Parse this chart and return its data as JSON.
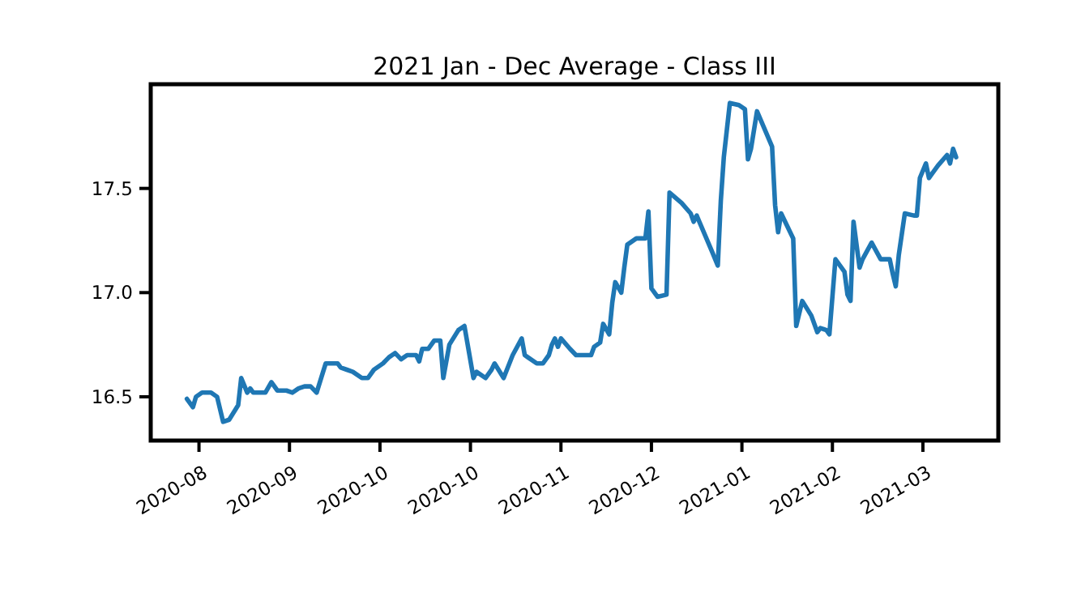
{
  "chart_data": {
    "type": "line",
    "title": "2021 Jan - Dec Average - Class III",
    "x": [
      "2020-07-29",
      "2020-07-31",
      "2020-08-01",
      "2020-08-03",
      "2020-08-06",
      "2020-08-08",
      "2020-08-10",
      "2020-08-12",
      "2020-08-15",
      "2020-08-16",
      "2020-08-18",
      "2020-08-19",
      "2020-08-20",
      "2020-08-23",
      "2020-08-24",
      "2020-08-26",
      "2020-08-28",
      "2020-08-31",
      "2020-09-02",
      "2020-09-04",
      "2020-09-06",
      "2020-09-08",
      "2020-09-10",
      "2020-09-13",
      "2020-09-17",
      "2020-09-18",
      "2020-09-20",
      "2020-09-22",
      "2020-09-25",
      "2020-09-27",
      "2020-09-29",
      "2020-10-02",
      "2020-10-04",
      "2020-10-06",
      "2020-10-08",
      "2020-10-10",
      "2020-10-13",
      "2020-10-14",
      "2020-10-15",
      "2020-10-17",
      "2020-10-19",
      "2020-10-21",
      "2020-10-22",
      "2020-10-24",
      "2020-10-27",
      "2020-10-29",
      "2020-11-01",
      "2020-11-02",
      "2020-11-05",
      "2020-11-07",
      "2020-11-08",
      "2020-11-11",
      "2020-11-14",
      "2020-11-17",
      "2020-11-18",
      "2020-11-19",
      "2020-11-22",
      "2020-11-24",
      "2020-11-26",
      "2020-11-27",
      "2020-11-28",
      "2020-11-29",
      "2020-11-30",
      "2020-12-03",
      "2020-12-05",
      "2020-12-06",
      "2020-12-10",
      "2020-12-11",
      "2020-12-13",
      "2020-12-14",
      "2020-12-16",
      "2020-12-17",
      "2020-12-18",
      "2020-12-20",
      "2020-12-21",
      "2020-12-22",
      "2020-12-25",
      "2020-12-28",
      "2020-12-29",
      "2020-12-30",
      "2021-01-01",
      "2021-01-04",
      "2021-01-05",
      "2021-01-09",
      "2021-01-12",
      "2021-01-13",
      "2021-01-14",
      "2021-01-19",
      "2021-01-21",
      "2021-01-22",
      "2021-01-23",
      "2021-01-25",
      "2021-01-28",
      "2021-01-30",
      "2021-01-31",
      "2021-02-01",
      "2021-02-03",
      "2021-02-08",
      "2021-02-09",
      "2021-02-10",
      "2021-02-11",
      "2021-02-15",
      "2021-02-16",
      "2021-02-18",
      "2021-02-21",
      "2021-02-23",
      "2021-02-24",
      "2021-02-26",
      "2021-02-27",
      "2021-03-01",
      "2021-03-04",
      "2021-03-05",
      "2021-03-06",
      "2021-03-07",
      "2021-03-09",
      "2021-03-10",
      "2021-03-13",
      "2021-03-16",
      "2021-03-19",
      "2021-03-20",
      "2021-03-21",
      "2021-03-22",
      "2021-03-24",
      "2021-03-27",
      "2021-03-28",
      "2021-03-29",
      "2021-03-31",
      "2021-04-01",
      "2021-04-02",
      "2021-04-04",
      "2021-04-07",
      "2021-04-08",
      "2021-04-09",
      "2021-04-10"
    ],
    "series": [
      {
        "color": "#1f77b4",
        "values": [
          16.49,
          16.45,
          16.5,
          16.52,
          16.52,
          16.5,
          16.38,
          16.39,
          16.46,
          16.59,
          16.52,
          16.54,
          16.52,
          16.52,
          16.52,
          16.57,
          16.53,
          16.53,
          16.52,
          16.54,
          16.55,
          16.55,
          16.52,
          16.66,
          16.66,
          16.64,
          16.63,
          16.62,
          16.59,
          16.59,
          16.63,
          16.66,
          16.69,
          16.71,
          16.68,
          16.7,
          16.7,
          16.67,
          16.73,
          16.73,
          16.77,
          16.77,
          16.59,
          16.75,
          16.82,
          16.84,
          16.59,
          16.62,
          16.59,
          16.63,
          16.66,
          16.59,
          16.7,
          16.78,
          16.7,
          16.69,
          16.66,
          16.66,
          16.7,
          16.75,
          16.78,
          16.74,
          16.78,
          16.73,
          16.7,
          16.7,
          16.7,
          16.74,
          16.76,
          16.85,
          16.8,
          16.95,
          17.05,
          17.0,
          17.12,
          17.23,
          17.26,
          17.26,
          17.39,
          17.02,
          16.98,
          16.99,
          17.48,
          17.43,
          17.38,
          17.34,
          17.37,
          17.2,
          17.13,
          17.44,
          17.65,
          17.91,
          17.9,
          17.88,
          17.64,
          17.69,
          17.87,
          17.7,
          17.42,
          17.29,
          17.38,
          17.26,
          16.84,
          16.96,
          16.89,
          16.81,
          16.83,
          16.82,
          16.8,
          17.16,
          17.1,
          16.99,
          16.96,
          17.34,
          17.12,
          17.16,
          17.24,
          17.16,
          17.16,
          17.09,
          17.03,
          17.18,
          17.38,
          17.37,
          17.37,
          17.55,
          17.62,
          17.55,
          17.57,
          17.61,
          17.66,
          17.62,
          17.69,
          17.65
        ]
      }
    ],
    "xlim": [
      "2020-07-17",
      "2021-04-24"
    ],
    "xticks": [
      {
        "value": "2020-08-02",
        "label": "2020-08"
      },
      {
        "value": "2020-09-01",
        "label": "2020-09"
      },
      {
        "value": "2020-10-01",
        "label": "2020-10"
      },
      {
        "value": "2020-10-31",
        "label": "2020-10"
      },
      {
        "value": "2020-11-30",
        "label": "2020-11"
      },
      {
        "value": "2020-12-30",
        "label": "2020-12"
      },
      {
        "value": "2021-01-29",
        "label": "2021-01"
      },
      {
        "value": "2021-02-28",
        "label": "2021-02"
      },
      {
        "value": "2021-03-30",
        "label": "2021-03"
      }
    ],
    "ylim": [
      16.29,
      18.0
    ],
    "yticks": [
      16.5,
      {
        "value": 17,
        "label": "17.0"
      },
      17.5
    ],
    "grid": false,
    "line_style": "solid"
  }
}
